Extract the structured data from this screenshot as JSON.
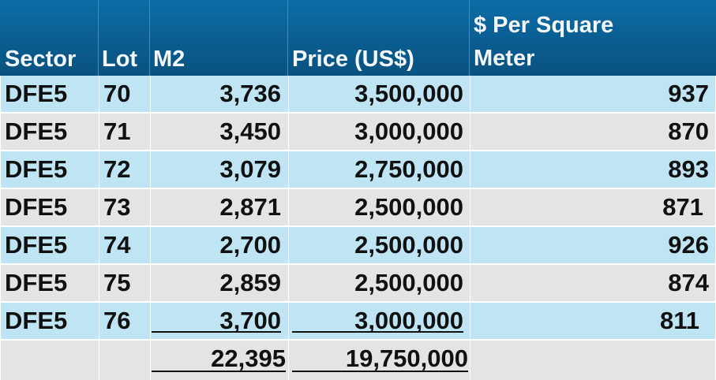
{
  "header": {
    "sector": "Sector",
    "lot": "Lot",
    "m2": "M2",
    "price": "Price (US$)",
    "per_sqm_line1": "$ Per Square",
    "per_sqm_line2": "Meter"
  },
  "rows": [
    {
      "sector": "DFE5",
      "lot": "70",
      "m2": "3,736",
      "price": "3,500,000",
      "per_sqm": "937"
    },
    {
      "sector": "DFE5",
      "lot": "71",
      "m2": "3,450",
      "price": "3,000,000",
      "per_sqm": "870"
    },
    {
      "sector": "DFE5",
      "lot": "72",
      "m2": "3,079",
      "price": "2,750,000",
      "per_sqm": "893"
    },
    {
      "sector": "DFE5",
      "lot": "73",
      "m2": "2,871",
      "price": "2,500,000",
      "per_sqm": "871"
    },
    {
      "sector": "DFE5",
      "lot": "74",
      "m2": "2,700",
      "price": "2,500,000",
      "per_sqm": "926"
    },
    {
      "sector": "DFE5",
      "lot": "75",
      "m2": "2,859",
      "price": "2,500,000",
      "per_sqm": "874"
    },
    {
      "sector": "DFE5",
      "lot": "76",
      "m2": "3,700",
      "price": "3,000,000",
      "per_sqm": "811"
    }
  ],
  "totals": {
    "m2": "22,395",
    "price": "19,750,000"
  },
  "colors": {
    "header_bg": "#0a5d91",
    "row_blue": "#bfe4f3",
    "row_grey": "#e4e4e4"
  }
}
